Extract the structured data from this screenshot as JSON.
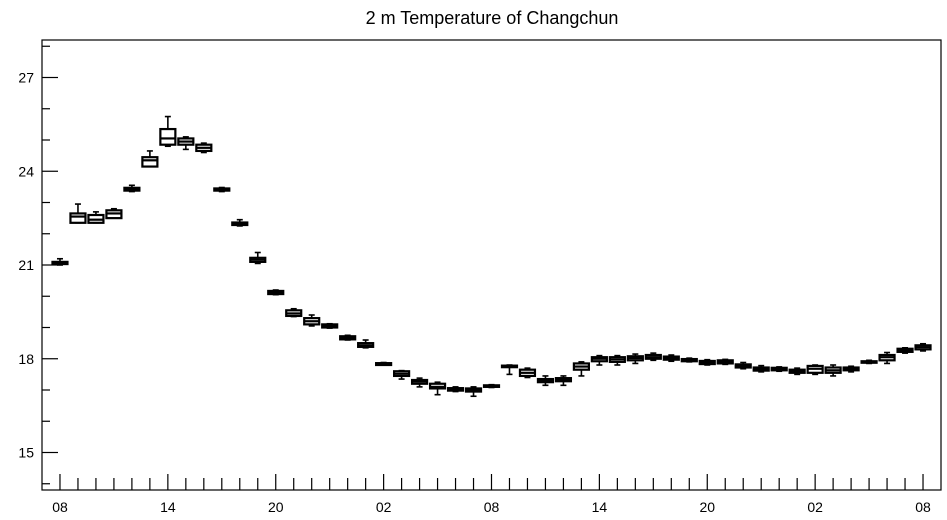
{
  "chart_data": {
    "type": "boxplot",
    "title": "2 m Temperature of Changchun",
    "xlabel": "",
    "ylabel": "",
    "ylim": [
      13.8,
      28.2
    ],
    "y_ticks": [
      15,
      18,
      21,
      24,
      27
    ],
    "x_tick_labels": [
      "08",
      "14",
      "20",
      "02",
      "08",
      "14",
      "20",
      "02",
      "08"
    ],
    "x_tick_label_steps": [
      0,
      6,
      12,
      18,
      24,
      30,
      36,
      42,
      48
    ],
    "x_step_hours": 1,
    "x_range": [
      -1,
      49
    ],
    "grid": false,
    "series": [
      {
        "boxes": [
          {
            "step": 0,
            "min": 21.0,
            "q1": 21.03,
            "median": 21.07,
            "q3": 21.1,
            "max": 21.2
          },
          {
            "step": 1,
            "min": 22.35,
            "q1": 22.35,
            "median": 22.55,
            "q3": 22.65,
            "max": 22.95
          },
          {
            "step": 2,
            "min": 22.35,
            "q1": 22.35,
            "median": 22.45,
            "q3": 22.6,
            "max": 22.7
          },
          {
            "step": 3,
            "min": 22.5,
            "q1": 22.5,
            "median": 22.65,
            "q3": 22.75,
            "max": 22.8
          },
          {
            "step": 4,
            "min": 23.35,
            "q1": 23.38,
            "median": 23.43,
            "q3": 23.47,
            "max": 23.55
          },
          {
            "step": 5,
            "min": 24.15,
            "q1": 24.15,
            "median": 24.35,
            "q3": 24.45,
            "max": 24.65
          },
          {
            "step": 6,
            "min": 24.8,
            "q1": 24.85,
            "median": 25.05,
            "q3": 25.35,
            "max": 25.75
          },
          {
            "step": 7,
            "min": 24.7,
            "q1": 24.85,
            "median": 24.95,
            "q3": 25.05,
            "max": 25.1
          },
          {
            "step": 8,
            "min": 24.6,
            "q1": 24.65,
            "median": 24.75,
            "q3": 24.85,
            "max": 24.9
          },
          {
            "step": 9,
            "min": 23.35,
            "q1": 23.38,
            "median": 23.42,
            "q3": 23.45,
            "max": 23.48
          },
          {
            "step": 10,
            "min": 22.25,
            "q1": 22.28,
            "median": 22.32,
            "q3": 22.36,
            "max": 22.45
          },
          {
            "step": 11,
            "min": 21.05,
            "q1": 21.1,
            "median": 21.17,
            "q3": 21.23,
            "max": 21.4
          },
          {
            "step": 12,
            "min": 20.05,
            "q1": 20.07,
            "median": 20.12,
            "q3": 20.17,
            "max": 20.2
          },
          {
            "step": 13,
            "min": 19.35,
            "q1": 19.37,
            "median": 19.45,
            "q3": 19.55,
            "max": 19.6
          },
          {
            "step": 14,
            "min": 19.05,
            "q1": 19.1,
            "median": 19.2,
            "q3": 19.3,
            "max": 19.4
          },
          {
            "step": 15,
            "min": 18.98,
            "q1": 19.0,
            "median": 19.05,
            "q3": 19.1,
            "max": 19.12
          },
          {
            "step": 16,
            "min": 18.6,
            "q1": 18.62,
            "median": 18.68,
            "q3": 18.72,
            "max": 18.75
          },
          {
            "step": 17,
            "min": 18.35,
            "q1": 18.38,
            "median": 18.43,
            "q3": 18.5,
            "max": 18.6
          },
          {
            "step": 18,
            "min": 17.8,
            "q1": 17.8,
            "median": 17.83,
            "q3": 17.86,
            "max": 17.88
          },
          {
            "step": 19,
            "min": 17.35,
            "q1": 17.45,
            "median": 17.52,
            "q3": 17.6,
            "max": 17.62
          },
          {
            "step": 20,
            "min": 17.1,
            "q1": 17.2,
            "median": 17.27,
            "q3": 17.32,
            "max": 17.38
          },
          {
            "step": 21,
            "min": 16.85,
            "q1": 17.05,
            "median": 17.1,
            "q3": 17.2,
            "max": 17.25
          },
          {
            "step": 22,
            "min": 16.95,
            "q1": 16.98,
            "median": 17.02,
            "q3": 17.06,
            "max": 17.1
          },
          {
            "step": 23,
            "min": 16.8,
            "q1": 16.95,
            "median": 17.0,
            "q3": 17.05,
            "max": 17.1
          },
          {
            "step": 24,
            "min": 17.08,
            "q1": 17.1,
            "median": 17.12,
            "q3": 17.15,
            "max": 17.17
          },
          {
            "step": 25,
            "min": 17.5,
            "q1": 17.73,
            "median": 17.75,
            "q3": 17.78,
            "max": 17.8
          },
          {
            "step": 26,
            "min": 17.4,
            "q1": 17.45,
            "median": 17.55,
            "q3": 17.65,
            "max": 17.7
          },
          {
            "step": 27,
            "min": 17.15,
            "q1": 17.25,
            "median": 17.3,
            "q3": 17.35,
            "max": 17.45
          },
          {
            "step": 28,
            "min": 17.15,
            "q1": 17.28,
            "median": 17.33,
            "q3": 17.38,
            "max": 17.45
          },
          {
            "step": 29,
            "min": 17.45,
            "q1": 17.65,
            "median": 17.75,
            "q3": 17.85,
            "max": 17.9
          },
          {
            "step": 30,
            "min": 17.8,
            "q1": 17.92,
            "median": 18.0,
            "q3": 18.05,
            "max": 18.1
          },
          {
            "step": 31,
            "min": 17.8,
            "q1": 17.9,
            "median": 17.98,
            "q3": 18.05,
            "max": 18.1
          },
          {
            "step": 32,
            "min": 17.85,
            "q1": 17.95,
            "median": 18.02,
            "q3": 18.08,
            "max": 18.15
          },
          {
            "step": 33,
            "min": 17.95,
            "q1": 18.0,
            "median": 18.05,
            "q3": 18.12,
            "max": 18.18
          },
          {
            "step": 34,
            "min": 17.92,
            "q1": 17.97,
            "median": 18.02,
            "q3": 18.07,
            "max": 18.12
          },
          {
            "step": 35,
            "min": 17.9,
            "q1": 17.92,
            "median": 17.96,
            "q3": 17.99,
            "max": 18.02
          },
          {
            "step": 36,
            "min": 17.8,
            "q1": 17.83,
            "median": 17.88,
            "q3": 17.93,
            "max": 17.97
          },
          {
            "step": 37,
            "min": 17.82,
            "q1": 17.85,
            "median": 17.9,
            "q3": 17.95,
            "max": 17.98
          },
          {
            "step": 38,
            "min": 17.68,
            "q1": 17.72,
            "median": 17.78,
            "q3": 17.82,
            "max": 17.88
          },
          {
            "step": 39,
            "min": 17.58,
            "q1": 17.62,
            "median": 17.67,
            "q3": 17.72,
            "max": 17.78
          },
          {
            "step": 40,
            "min": 17.6,
            "q1": 17.63,
            "median": 17.67,
            "q3": 17.71,
            "max": 17.74
          },
          {
            "step": 41,
            "min": 17.5,
            "q1": 17.55,
            "median": 17.6,
            "q3": 17.65,
            "max": 17.7
          },
          {
            "step": 42,
            "min": 17.5,
            "q1": 17.55,
            "median": 17.68,
            "q3": 17.77,
            "max": 17.8
          },
          {
            "step": 43,
            "min": 17.45,
            "q1": 17.55,
            "median": 17.63,
            "q3": 17.72,
            "max": 17.8
          },
          {
            "step": 44,
            "min": 17.58,
            "q1": 17.63,
            "median": 17.68,
            "q3": 17.72,
            "max": 17.76
          },
          {
            "step": 45,
            "min": 17.85,
            "q1": 17.88,
            "median": 17.9,
            "q3": 17.92,
            "max": 17.95
          },
          {
            "step": 46,
            "min": 17.85,
            "q1": 17.95,
            "median": 18.05,
            "q3": 18.12,
            "max": 18.2
          },
          {
            "step": 47,
            "min": 18.18,
            "q1": 18.22,
            "median": 18.27,
            "q3": 18.32,
            "max": 18.35
          },
          {
            "step": 48,
            "min": 18.25,
            "q1": 18.3,
            "median": 18.37,
            "q3": 18.43,
            "max": 18.48
          }
        ]
      }
    ]
  }
}
